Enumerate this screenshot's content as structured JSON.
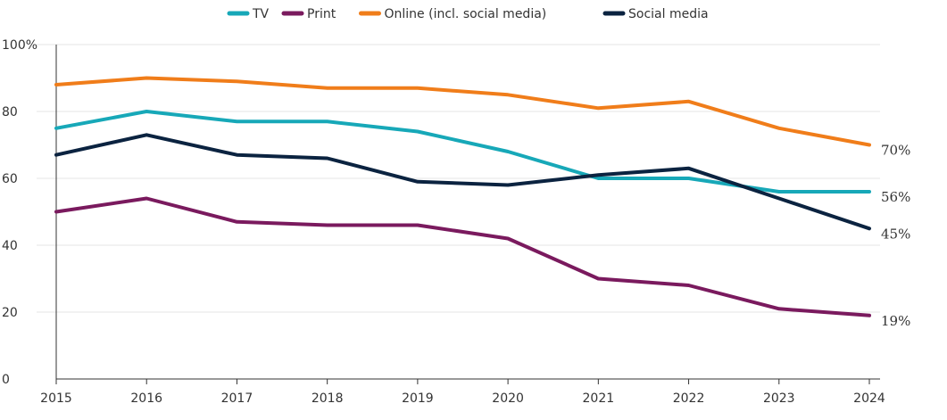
{
  "chart_data": {
    "type": "line",
    "title": "",
    "xlabel": "",
    "ylabel": "",
    "x": [
      "2015",
      "2016",
      "2017",
      "2018",
      "2019",
      "2020",
      "2021",
      "2022",
      "2023",
      "2024"
    ],
    "ylim": [
      0,
      100
    ],
    "yticks": [
      "0",
      "20",
      "40",
      "60",
      "80",
      "100%"
    ],
    "grid": "horizontal",
    "legend_position": "top",
    "series": [
      {
        "name": "TV",
        "color": "#17a8b8",
        "values": [
          75,
          80,
          77,
          77,
          74,
          68,
          60,
          60,
          56,
          56
        ],
        "end_label": "56%"
      },
      {
        "name": "Print",
        "color": "#7a1a5e",
        "values": [
          50,
          54,
          47,
          46,
          46,
          42,
          30,
          28,
          21,
          19
        ],
        "end_label": "19%"
      },
      {
        "name": "Online (incl. social media)",
        "color": "#f07d1a",
        "values": [
          88,
          90,
          89,
          87,
          87,
          85,
          81,
          83,
          75,
          70
        ],
        "end_label": "70%"
      },
      {
        "name": "Social media",
        "color": "#0b2340",
        "values": [
          67,
          73,
          67,
          66,
          59,
          58,
          61,
          63,
          54,
          45
        ],
        "end_label": "45%"
      }
    ]
  }
}
